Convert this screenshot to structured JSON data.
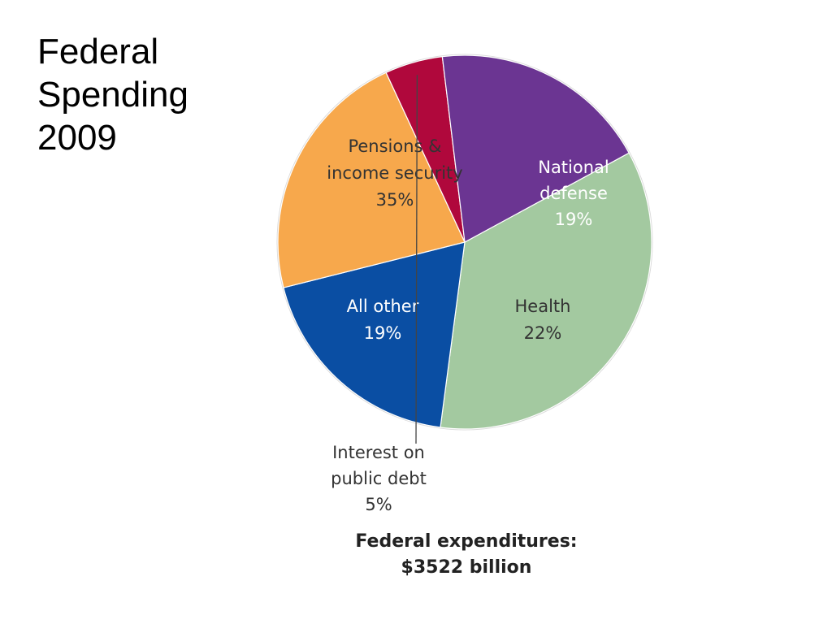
{
  "slide": {
    "title_lines": [
      "Federal",
      "Spending",
      "2009"
    ]
  },
  "chart_data": {
    "type": "pie",
    "title": "",
    "unit": "%",
    "slices": [
      {
        "name": "Pensions & income security",
        "label_lines": [
          "Pensions &",
          "income security",
          "35%"
        ],
        "value": 35,
        "color": "#a3c9a0",
        "text_color": "#333333"
      },
      {
        "name": "National defense",
        "label_lines": [
          "National",
          "defense",
          "19%"
        ],
        "value": 19,
        "color": "#0a4ea3",
        "text_color": "#ffffff"
      },
      {
        "name": "Health",
        "label_lines": [
          "Health",
          "22%"
        ],
        "value": 22,
        "color": "#f7a84c",
        "text_color": "#333333"
      },
      {
        "name": "Interest on public debt",
        "label_lines": [
          "Interest on",
          "public debt",
          "5%"
        ],
        "value": 5,
        "color": "#b0083c",
        "text_color": "#333333"
      },
      {
        "name": "All other",
        "label_lines": [
          "All other",
          "19%"
        ],
        "value": 19,
        "color": "#6b3592",
        "text_color": "#ffffff"
      }
    ],
    "total_label_lines": [
      "Federal expenditures:",
      "$3522 billion"
    ]
  }
}
